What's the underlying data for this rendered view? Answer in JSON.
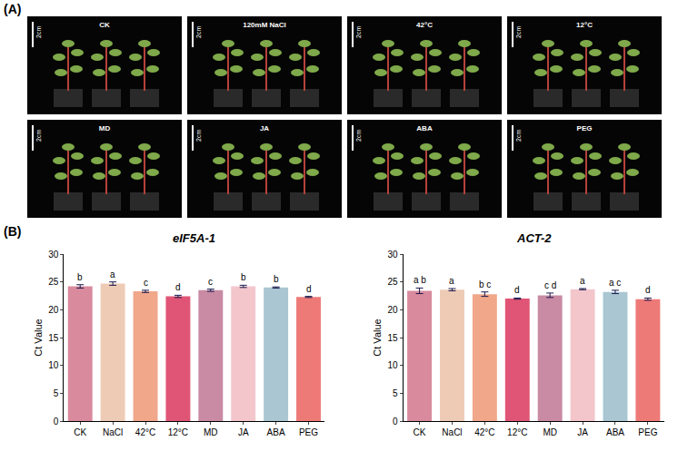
{
  "panel_a": {
    "letter": "(A)",
    "scale_label": "2cm",
    "images": [
      "CK",
      "120mM NaCl",
      "42°C",
      "12°C",
      "MD",
      "JA",
      "ABA",
      "PEG"
    ]
  },
  "panel_b_letter": "(B)",
  "chart_data": [
    {
      "type": "bar",
      "title": "eIF5A-1",
      "y_label": "Ct Value",
      "categories": [
        "CK",
        "NaCl",
        "42°C",
        "12°C",
        "MD",
        "JA",
        "ABA",
        "PEG"
      ],
      "values": [
        24.2,
        24.7,
        23.3,
        22.4,
        23.5,
        24.2,
        24.0,
        22.3
      ],
      "error": [
        0.3,
        0.3,
        0.2,
        0.2,
        0.2,
        0.2,
        0.1,
        0.1
      ],
      "significance": [
        "b",
        "a",
        "c",
        "d",
        "c",
        "b",
        "b",
        "d"
      ],
      "colors": [
        "#d98a9d",
        "#eecbb5",
        "#f0a78a",
        "#e05575",
        "#c98aa3",
        "#f3c6cc",
        "#a9c6d2",
        "#ee7a78"
      ],
      "ylim": [
        0,
        30
      ],
      "yticks": [
        0,
        5,
        10,
        15,
        20,
        25,
        30
      ],
      "grid": false
    },
    {
      "type": "bar",
      "title": "ACT-2",
      "y_label": "Ct Value",
      "categories": [
        "CK",
        "NaCl",
        "42°C",
        "12°C",
        "MD",
        "JA",
        "ABA",
        "PEG"
      ],
      "values": [
        23.4,
        23.6,
        22.8,
        22.0,
        22.6,
        23.7,
        23.2,
        21.9
      ],
      "error": [
        0.5,
        0.2,
        0.4,
        0.1,
        0.4,
        0.1,
        0.3,
        0.2
      ],
      "significance": [
        "a b",
        "a",
        "b c",
        "d",
        "c d",
        "a",
        "a c",
        "d"
      ],
      "colors": [
        "#d98a9d",
        "#eecbb5",
        "#f0a78a",
        "#e05575",
        "#c98aa3",
        "#f3c6cc",
        "#a9c6d2",
        "#ee7a78"
      ],
      "ylim": [
        0,
        30
      ],
      "yticks": [
        0,
        5,
        10,
        15,
        20,
        25,
        30
      ],
      "grid": false
    }
  ]
}
